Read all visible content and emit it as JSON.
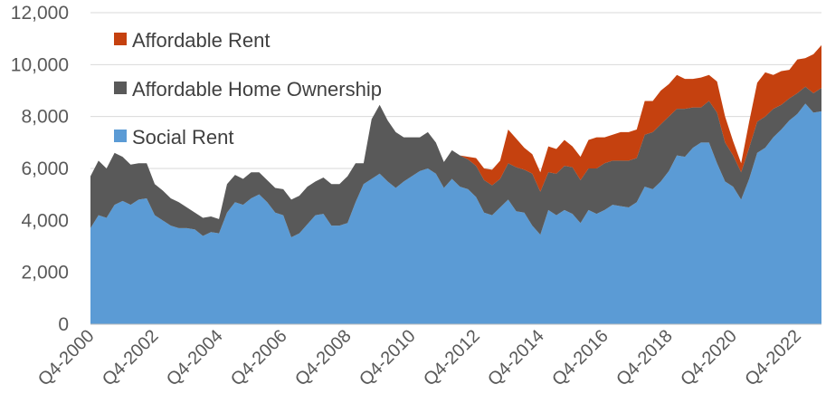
{
  "chart_data": {
    "type": "area",
    "stacked": true,
    "x_tick_labels": [
      "Q4-2000",
      "Q4-2002",
      "Q4-2004",
      "Q4-2006",
      "Q4-2008",
      "Q4-2010",
      "Q4-2012",
      "Q4-2014",
      "Q4-2016",
      "Q4-2018",
      "Q4-2020",
      "Q4-2022"
    ],
    "x_start_label": "Q4-2000",
    "x_end_label": "Q3-2023",
    "ylim": [
      0,
      12000
    ],
    "y_ticks": [
      0,
      2000,
      4000,
      6000,
      8000,
      10000,
      12000
    ],
    "y_tick_labels": [
      "0",
      "2,000",
      "4,000",
      "6,000",
      "8,000",
      "10,000",
      "12,000"
    ],
    "grid": true,
    "legend_position": "top-left",
    "series": [
      {
        "name": "Social Rent",
        "color": "#5b9bd5",
        "values": [
          3700,
          4200,
          4100,
          4600,
          4750,
          4600,
          4800,
          4850,
          4200,
          4000,
          3800,
          3700,
          3700,
          3650,
          3400,
          3550,
          3500,
          4300,
          4700,
          4600,
          4850,
          5000,
          4700,
          4300,
          4200,
          3350,
          3500,
          3850,
          4200,
          4250,
          3800,
          3800,
          3900,
          4700,
          5400,
          5600,
          5800,
          5500,
          5250,
          5500,
          5700,
          5900,
          6000,
          5800,
          5250,
          5600,
          5300,
          5200,
          4900,
          4300,
          4200,
          4500,
          4800,
          4350,
          4300,
          3800,
          3450,
          4400,
          4200,
          4400,
          4250,
          3900,
          4400,
          4250,
          4400,
          4600,
          4550,
          4500,
          4700,
          5300,
          5200,
          5500,
          5900,
          6500,
          6450,
          6800,
          7000,
          7000,
          6200,
          5500,
          5300,
          4800,
          5600,
          6600,
          6800,
          7200,
          7500,
          7850,
          8100,
          8500,
          8150,
          8200
        ]
      },
      {
        "name": "Affordable Home Ownership",
        "color": "#595959",
        "values": [
          2000,
          2100,
          1900,
          2000,
          1700,
          1550,
          1400,
          1350,
          1200,
          1150,
          1050,
          1000,
          800,
          650,
          700,
          600,
          550,
          1100,
          1050,
          1000,
          1000,
          850,
          850,
          950,
          1000,
          1450,
          1450,
          1450,
          1300,
          1400,
          1600,
          1600,
          1800,
          1500,
          800,
          2300,
          2650,
          2350,
          2150,
          1700,
          1500,
          1300,
          1400,
          1200,
          1000,
          1100,
          1200,
          1150,
          1200,
          1250,
          1150,
          1100,
          1400,
          1700,
          1650,
          2000,
          1650,
          1450,
          1600,
          1700,
          1800,
          1650,
          1600,
          1750,
          1800,
          1700,
          1750,
          1800,
          1700,
          2000,
          2200,
          2200,
          2100,
          1800,
          1850,
          1550,
          1350,
          1600,
          1950,
          1500,
          1200,
          1050,
          1200,
          1200,
          1200,
          1100,
          950,
          850,
          800,
          650,
          750,
          900
        ]
      },
      {
        "name": "Affordable Rent",
        "color": "#c5410f",
        "values": [
          0,
          0,
          0,
          0,
          0,
          0,
          0,
          0,
          0,
          0,
          0,
          0,
          0,
          0,
          0,
          0,
          0,
          0,
          0,
          0,
          0,
          0,
          0,
          0,
          0,
          0,
          0,
          0,
          0,
          0,
          0,
          0,
          0,
          0,
          0,
          0,
          0,
          0,
          0,
          0,
          0,
          0,
          0,
          0,
          0,
          0,
          0,
          100,
          300,
          450,
          600,
          700,
          1300,
          1100,
          850,
          750,
          750,
          1000,
          950,
          1000,
          800,
          900,
          1100,
          1200,
          1000,
          1000,
          1100,
          1100,
          1100,
          1300,
          1200,
          1300,
          1250,
          1300,
          1150,
          1100,
          1150,
          1000,
          1200,
          1000,
          550,
          350,
          1000,
          1500,
          1700,
          1300,
          1300,
          1100,
          1300,
          1100,
          1500,
          1650
        ]
      }
    ]
  }
}
